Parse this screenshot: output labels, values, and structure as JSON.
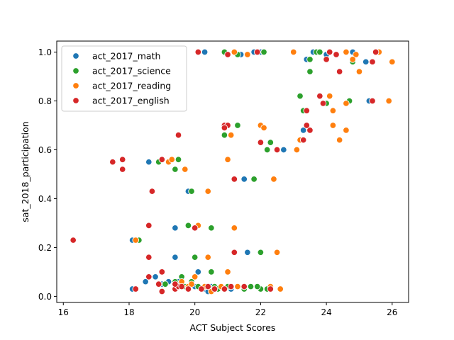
{
  "chart_data": {
    "type": "scatter",
    "xlabel": "ACT Subject Scores",
    "ylabel": "sat_2018_participation",
    "xlim": [
      15.8,
      26.5
    ],
    "ylim": [
      -0.025,
      1.045
    ],
    "xticks": [
      16,
      18,
      20,
      22,
      24,
      26
    ],
    "yticks": [
      0.0,
      0.2,
      0.4,
      0.6,
      0.8,
      1.0
    ],
    "xtick_labels": [
      "16",
      "18",
      "20",
      "22",
      "24",
      "26"
    ],
    "ytick_labels": [
      "0.0",
      "0.2",
      "0.4",
      "0.6",
      "0.8",
      "1.0"
    ],
    "legend_position": "upper-left",
    "grid": false,
    "series": [
      {
        "name": "act_2017_math",
        "color": "#1f77b4",
        "points": [
          [
            20.3,
            1.0
          ],
          [
            21.4,
            0.99
          ],
          [
            22.0,
            1.0
          ],
          [
            23.6,
            1.0
          ],
          [
            23.4,
            0.97
          ],
          [
            24.0,
            0.99
          ],
          [
            25.2,
            0.96
          ],
          [
            24.8,
            1.0
          ],
          [
            21.8,
            1.0
          ],
          [
            23.3,
            0.76
          ],
          [
            23.9,
            0.79
          ],
          [
            25.3,
            0.8
          ],
          [
            22.3,
            0.63
          ],
          [
            23.2,
            0.64
          ],
          [
            23.3,
            0.68
          ],
          [
            22.7,
            0.6
          ],
          [
            21.5,
            0.48
          ],
          [
            22.1,
            0.69
          ],
          [
            21.1,
            0.66
          ],
          [
            20.9,
            0.7
          ],
          [
            18.6,
            0.55
          ],
          [
            19.8,
            0.43
          ],
          [
            19.4,
            0.28
          ],
          [
            18.1,
            0.23
          ],
          [
            19.4,
            0.16
          ],
          [
            21.6,
            0.18
          ],
          [
            18.1,
            0.03
          ],
          [
            18.5,
            0.06
          ],
          [
            18.8,
            0.08
          ],
          [
            19.0,
            0.05
          ],
          [
            19.2,
            0.06
          ],
          [
            19.4,
            0.03
          ],
          [
            19.6,
            0.05
          ],
          [
            19.8,
            0.04
          ],
          [
            20.1,
            0.1
          ],
          [
            20.3,
            0.03
          ],
          [
            20.4,
            0.02
          ],
          [
            20.5,
            0.04
          ],
          [
            20.8,
            0.04
          ],
          [
            21.1,
            0.03
          ],
          [
            21.3,
            0.04
          ],
          [
            21.5,
            0.03
          ],
          [
            20.0,
            0.04
          ],
          [
            19.5,
            0.06
          ]
        ]
      },
      {
        "name": "act_2017_science",
        "color": "#2ca02c",
        "points": [
          [
            20.9,
            1.0
          ],
          [
            21.3,
            0.99
          ],
          [
            22.1,
            1.0
          ],
          [
            23.7,
            1.0
          ],
          [
            23.8,
            1.0
          ],
          [
            24.6,
            1.0
          ],
          [
            23.5,
            0.97
          ],
          [
            24.8,
            0.96
          ],
          [
            23.5,
            0.92
          ],
          [
            23.2,
            0.82
          ],
          [
            24.7,
            0.8
          ],
          [
            23.3,
            0.76
          ],
          [
            24.0,
            0.79
          ],
          [
            21.3,
            0.7
          ],
          [
            20.9,
            0.66
          ],
          [
            22.3,
            0.63
          ],
          [
            22.2,
            0.6
          ],
          [
            21.8,
            0.48
          ],
          [
            18.9,
            0.55
          ],
          [
            19.3,
            0.56
          ],
          [
            19.5,
            0.56
          ],
          [
            19.4,
            0.52
          ],
          [
            19.9,
            0.43
          ],
          [
            19.8,
            0.29
          ],
          [
            20.5,
            0.28
          ],
          [
            18.3,
            0.23
          ],
          [
            20.0,
            0.16
          ],
          [
            22.0,
            0.18
          ],
          [
            20.5,
            0.1
          ],
          [
            19.6,
            0.08
          ],
          [
            19.9,
            0.06
          ],
          [
            19.7,
            0.04
          ],
          [
            20.1,
            0.04
          ],
          [
            20.6,
            0.04
          ],
          [
            21.0,
            0.04
          ],
          [
            21.5,
            0.03
          ],
          [
            21.7,
            0.04
          ],
          [
            22.0,
            0.03
          ],
          [
            22.2,
            0.03
          ],
          [
            19.1,
            0.05
          ],
          [
            19.4,
            0.06
          ],
          [
            20.7,
            0.03
          ],
          [
            21.9,
            0.04
          ]
        ]
      },
      {
        "name": "act_2017_reading",
        "color": "#ff7f0e",
        "points": [
          [
            21.2,
            1.0
          ],
          [
            21.6,
            0.99
          ],
          [
            23.0,
            1.0
          ],
          [
            24.6,
            1.0
          ],
          [
            24.9,
            0.99
          ],
          [
            25.6,
            1.0
          ],
          [
            24.8,
            0.97
          ],
          [
            26.0,
            0.96
          ],
          [
            25.0,
            0.92
          ],
          [
            24.1,
            0.82
          ],
          [
            25.9,
            0.8
          ],
          [
            24.2,
            0.76
          ],
          [
            24.6,
            0.79
          ],
          [
            22.0,
            0.7
          ],
          [
            22.1,
            0.69
          ],
          [
            21.1,
            0.66
          ],
          [
            24.2,
            0.7
          ],
          [
            24.4,
            0.64
          ],
          [
            23.2,
            0.64
          ],
          [
            23.1,
            0.6
          ],
          [
            24.6,
            0.68
          ],
          [
            21.0,
            0.56
          ],
          [
            19.2,
            0.55
          ],
          [
            19.3,
            0.56
          ],
          [
            19.7,
            0.52
          ],
          [
            20.4,
            0.43
          ],
          [
            22.4,
            0.48
          ],
          [
            20.1,
            0.29
          ],
          [
            21.2,
            0.28
          ],
          [
            18.2,
            0.23
          ],
          [
            20.4,
            0.16
          ],
          [
            22.5,
            0.18
          ],
          [
            21.0,
            0.1
          ],
          [
            19.6,
            0.06
          ],
          [
            20.0,
            0.08
          ],
          [
            19.8,
            0.04
          ],
          [
            20.3,
            0.04
          ],
          [
            20.6,
            0.03
          ],
          [
            20.8,
            0.04
          ],
          [
            21.3,
            0.04
          ],
          [
            22.3,
            0.04
          ],
          [
            22.6,
            0.03
          ],
          [
            20.5,
            0.02
          ],
          [
            19.9,
            0.05
          ],
          [
            20.9,
            0.03
          ]
        ]
      },
      {
        "name": "act_2017_english",
        "color": "#d62728",
        "points": [
          [
            20.1,
            1.0
          ],
          [
            21.0,
            0.99
          ],
          [
            21.9,
            1.0
          ],
          [
            24.1,
            1.0
          ],
          [
            24.3,
            0.99
          ],
          [
            25.5,
            1.0
          ],
          [
            24.0,
            0.97
          ],
          [
            25.4,
            0.96
          ],
          [
            24.4,
            0.92
          ],
          [
            23.8,
            0.82
          ],
          [
            25.4,
            0.8
          ],
          [
            23.4,
            0.76
          ],
          [
            23.9,
            0.79
          ],
          [
            20.9,
            0.7
          ],
          [
            21.0,
            0.7
          ],
          [
            23.3,
            0.64
          ],
          [
            22.5,
            0.6
          ],
          [
            22.0,
            0.63
          ],
          [
            23.5,
            0.68
          ],
          [
            23.4,
            0.7
          ],
          [
            20.9,
            0.69
          ],
          [
            19.5,
            0.66
          ],
          [
            17.5,
            0.55
          ],
          [
            17.8,
            0.56
          ],
          [
            17.8,
            0.52
          ],
          [
            19.0,
            0.56
          ],
          [
            18.7,
            0.43
          ],
          [
            21.2,
            0.48
          ],
          [
            18.6,
            0.29
          ],
          [
            20.0,
            0.28
          ],
          [
            16.3,
            0.23
          ],
          [
            18.6,
            0.16
          ],
          [
            21.2,
            0.18
          ],
          [
            18.2,
            0.03
          ],
          [
            18.6,
            0.08
          ],
          [
            18.9,
            0.05
          ],
          [
            19.0,
            0.02
          ],
          [
            19.0,
            0.1
          ],
          [
            19.4,
            0.03
          ],
          [
            19.5,
            0.04
          ],
          [
            19.8,
            0.03
          ],
          [
            20.4,
            0.04
          ],
          [
            20.6,
            0.03
          ],
          [
            20.9,
            0.03
          ],
          [
            21.1,
            0.04
          ],
          [
            21.5,
            0.04
          ],
          [
            22.3,
            0.03
          ],
          [
            19.6,
            0.04
          ],
          [
            19.4,
            0.05
          ],
          [
            20.2,
            0.03
          ]
        ]
      }
    ]
  }
}
